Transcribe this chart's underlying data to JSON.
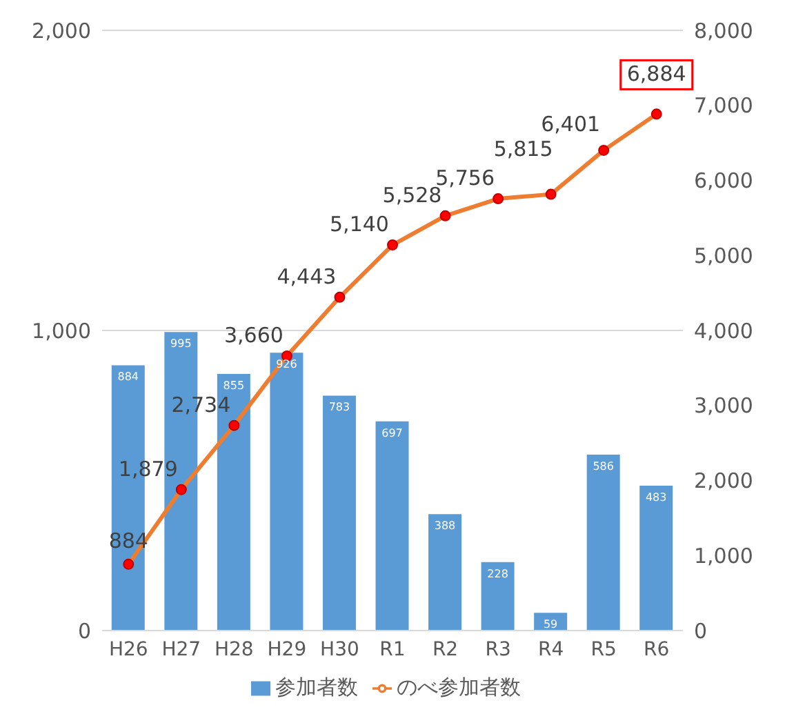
{
  "chart_data": {
    "type": "bar",
    "categories": [
      "H26",
      "H27",
      "H28",
      "H29",
      "H30",
      "R1",
      "R2",
      "R3",
      "R4",
      "R5",
      "R6"
    ],
    "series": [
      {
        "name": "参加者数",
        "color": "#5b9bd5",
        "values": [
          884,
          995,
          855,
          926,
          783,
          697,
          388,
          228,
          59,
          586,
          483
        ],
        "value_labels": [
          "884",
          "995",
          "855",
          "926",
          "783",
          "697",
          "388",
          "228",
          "59",
          "586",
          "483"
        ]
      },
      {
        "name": "のべ参加者数",
        "type": "line",
        "axis": "y2",
        "color": "#ed7d31",
        "values": [
          884,
          1879,
          2734,
          3660,
          4443,
          5140,
          5528,
          5756,
          5815,
          6401,
          6884
        ],
        "value_labels": [
          "884",
          "1,879",
          "2,734",
          "3,660",
          "4,443",
          "5,140",
          "5,528",
          "5,756",
          "5,815",
          "6,401",
          "6,884"
        ]
      }
    ],
    "ylim": [
      0,
      2000
    ],
    "yticks": [
      0,
      {
        "value": 1000,
        "label": "1,000"
      },
      {
        "value": 2000,
        "label": "2,000"
      }
    ],
    "y2lim": [
      0,
      8000
    ],
    "y2ticks": [
      0,
      {
        "value": 1000,
        "label": "1,000"
      },
      {
        "value": 2000,
        "label": "2,000"
      },
      {
        "value": 3000,
        "label": "3,000"
      },
      {
        "value": 4000,
        "label": "4,000"
      },
      {
        "value": 5000,
        "label": "5,000"
      },
      {
        "value": 6000,
        "label": "6,000"
      },
      {
        "value": 7000,
        "label": "7,000"
      },
      {
        "value": 8000,
        "label": "8,000"
      }
    ],
    "grid": "y",
    "legend": "bottom",
    "marker": "circle",
    "line_style": "solid"
  }
}
